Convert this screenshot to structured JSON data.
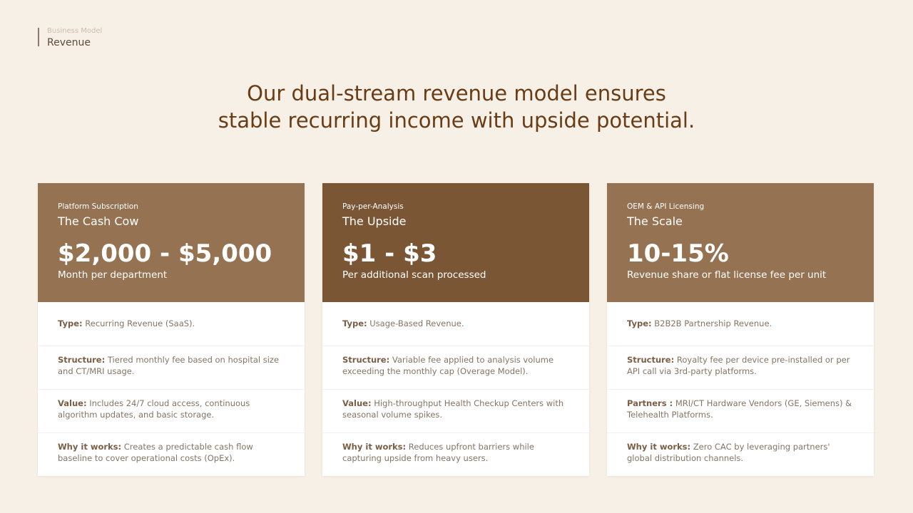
{
  "breadcrumb": {
    "section": "Business Model",
    "page": "Revenue"
  },
  "headline": {
    "line1": "Our dual-stream revenue model ensures",
    "line2": "stable recurring income with upside potential."
  },
  "colors": {
    "background": "#f7f0e6",
    "card1": "#957352",
    "card2": "#7a5634",
    "card3": "#957352",
    "headline": "#6a3c15"
  },
  "cards": [
    {
      "category": "Platform Subscription",
      "name": "The Cash Cow",
      "price": "$2,000 - $5,000",
      "unit": "Month per department",
      "rows": [
        {
          "label": "Type:",
          "text": "Recurring Revenue (SaaS)."
        },
        {
          "label": "Structure:",
          "text": "Tiered monthly fee based on hospital size and CT/MRI usage."
        },
        {
          "label": "Value:",
          "text": "Includes 24/7 cloud access, continuous algorithm updates, and basic storage."
        },
        {
          "label": "Why it works:",
          "text": "Creates a predictable cash flow baseline to cover operational costs (OpEx)."
        }
      ]
    },
    {
      "category": "Pay-per-Analysis",
      "name": "The Upside",
      "price": "$1 - $3",
      "unit": "Per additional scan processed",
      "rows": [
        {
          "label": "Type:",
          "text": "Usage-Based Revenue."
        },
        {
          "label": "Structure:",
          "text": "Variable fee applied to analysis volume exceeding the monthly cap (Overage Model)."
        },
        {
          "label": "Value:",
          "text": "High-throughput Health Checkup Centers with seasonal volume spikes."
        },
        {
          "label": "Why it works:",
          "text": "Reduces upfront barriers while capturing upside from heavy users."
        }
      ]
    },
    {
      "category": "OEM & API Licensing",
      "name": "The Scale",
      "price": "10-15%",
      "unit": "Revenue share or flat license fee per unit",
      "rows": [
        {
          "label": "Type:",
          "text": "B2B2B Partnership Revenue."
        },
        {
          "label": "Structure:",
          "text": "Royalty fee per device pre-installed or per API call via 3rd-party platforms."
        },
        {
          "label": "Partners :",
          "text": "MRI/CT Hardware Vendors (GE, Siemens) & Telehealth Platforms."
        },
        {
          "label": "Why it works:",
          "text": "Zero CAC by leveraging partners' global distribution channels."
        }
      ]
    }
  ]
}
